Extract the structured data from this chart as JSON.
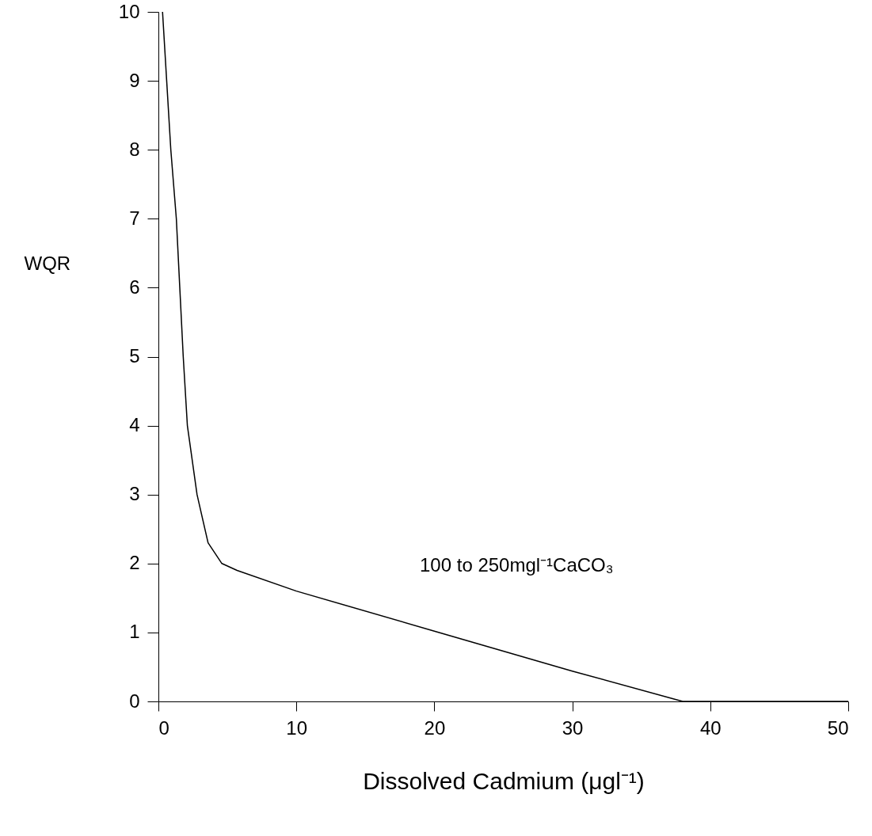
{
  "chart_data": {
    "type": "line",
    "xlabel": "Dissolved Cadmium (μgl⁻¹)",
    "ylabel": "WQR",
    "x": [
      0.3,
      0.6,
      0.9,
      1.3,
      1.55,
      1.8,
      2.1,
      2.8,
      3.6,
      4.6,
      5.7,
      10,
      20,
      30,
      38,
      50
    ],
    "series": [
      {
        "color": "#000000",
        "values": [
          10,
          9,
          8,
          7,
          6,
          5,
          4,
          3,
          2.3,
          2,
          1.9,
          1.6,
          1.02,
          0.44,
          0,
          0
        ]
      }
    ],
    "xlim": [
      0,
      50
    ],
    "xticks": [
      0,
      10,
      20,
      30,
      40,
      50
    ],
    "ylim": [
      0,
      10
    ],
    "yticks": [
      0,
      1,
      2,
      3,
      4,
      5,
      6,
      7,
      8,
      9,
      10
    ],
    "annotations": [
      "100 to 250mgl⁻¹CaCO₃"
    ],
    "grid": false,
    "marker": "none",
    "line_style": "solid"
  }
}
